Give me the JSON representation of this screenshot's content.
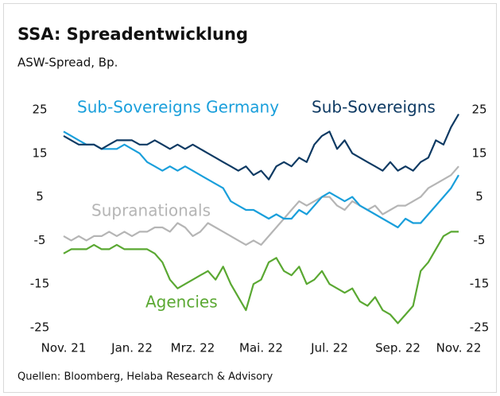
{
  "chart_data": {
    "type": "line",
    "title": "SSA: Spreadentwicklung",
    "subtitle": "ASW-Spread, Bp.",
    "source": "Quellen: Bloomberg, Helaba Research & Advisory",
    "categories": [
      "Nov. 21",
      null,
      null,
      null,
      null,
      null,
      null,
      null,
      null,
      "Jan. 22",
      null,
      null,
      null,
      null,
      null,
      null,
      null,
      "Mrz. 22",
      null,
      null,
      null,
      null,
      null,
      null,
      null,
      null,
      "Mai. 22",
      null,
      null,
      null,
      null,
      null,
      null,
      null,
      null,
      "Jul. 22",
      null,
      null,
      null,
      null,
      null,
      null,
      null,
      null,
      "Sep. 22",
      null,
      null,
      null,
      null,
      null,
      null,
      null,
      "Nov. 22"
    ],
    "ylim": [
      -25,
      25
    ],
    "yticks": [
      25,
      15,
      5,
      -5,
      -15,
      -25
    ],
    "y2lim": [
      -25,
      25
    ],
    "y2ticks": [
      25,
      15,
      5,
      -5,
      -15,
      -25
    ],
    "grid": false,
    "series": [
      {
        "name": "Sub-Sovereigns",
        "color": "#0e3a63",
        "values": [
          19,
          18,
          17,
          17,
          17,
          16,
          17,
          18,
          18,
          18,
          17,
          17,
          18,
          17,
          16,
          17,
          16,
          17,
          16,
          15,
          14,
          13,
          12,
          11,
          12,
          10,
          11,
          9,
          12,
          13,
          12,
          14,
          13,
          17,
          19,
          20,
          16,
          18,
          15,
          14,
          13,
          12,
          11,
          13,
          11,
          12,
          11,
          13,
          14,
          18,
          17,
          21,
          24
        ]
      },
      {
        "name": "Sub-Sovereigns Germany",
        "color": "#1a9fdb",
        "values": [
          20,
          19,
          18,
          17,
          17,
          16,
          16,
          16,
          17,
          16,
          15,
          13,
          12,
          11,
          12,
          11,
          12,
          11,
          10,
          9,
          8,
          7,
          4,
          3,
          2,
          2,
          1,
          0,
          1,
          0,
          0,
          2,
          1,
          3,
          5,
          6,
          5,
          4,
          5,
          3,
          2,
          1,
          0,
          -1,
          -2,
          0,
          -1,
          -1,
          1,
          3,
          5,
          7,
          10
        ]
      },
      {
        "name": "Supranationals",
        "color": "#b5b5b5",
        "values": [
          -4,
          -5,
          -4,
          -5,
          -4,
          -4,
          -3,
          -4,
          -3,
          -4,
          -3,
          -3,
          -2,
          -2,
          -3,
          -1,
          -2,
          -4,
          -3,
          -1,
          -2,
          -3,
          -4,
          -5,
          -6,
          -5,
          -6,
          -4,
          -2,
          0,
          2,
          4,
          3,
          4,
          5,
          5,
          3,
          2,
          4,
          3,
          2,
          3,
          1,
          2,
          3,
          3,
          4,
          5,
          7,
          8,
          9,
          10,
          12
        ]
      },
      {
        "name": "Agencies",
        "color": "#5aa832",
        "values": [
          -8,
          -7,
          -7,
          -7,
          -6,
          -7,
          -7,
          -6,
          -7,
          -7,
          -7,
          -7,
          -8,
          -10,
          -14,
          -16,
          -15,
          -14,
          -13,
          -12,
          -14,
          -11,
          -15,
          -18,
          -21,
          -15,
          -14,
          -10,
          -9,
          -12,
          -13,
          -11,
          -15,
          -14,
          -12,
          -15,
          -16,
          -17,
          -16,
          -19,
          -20,
          -18,
          -21,
          -22,
          -24,
          -22,
          -20,
          -12,
          -10,
          -7,
          -4,
          -3,
          -3
        ]
      }
    ]
  }
}
